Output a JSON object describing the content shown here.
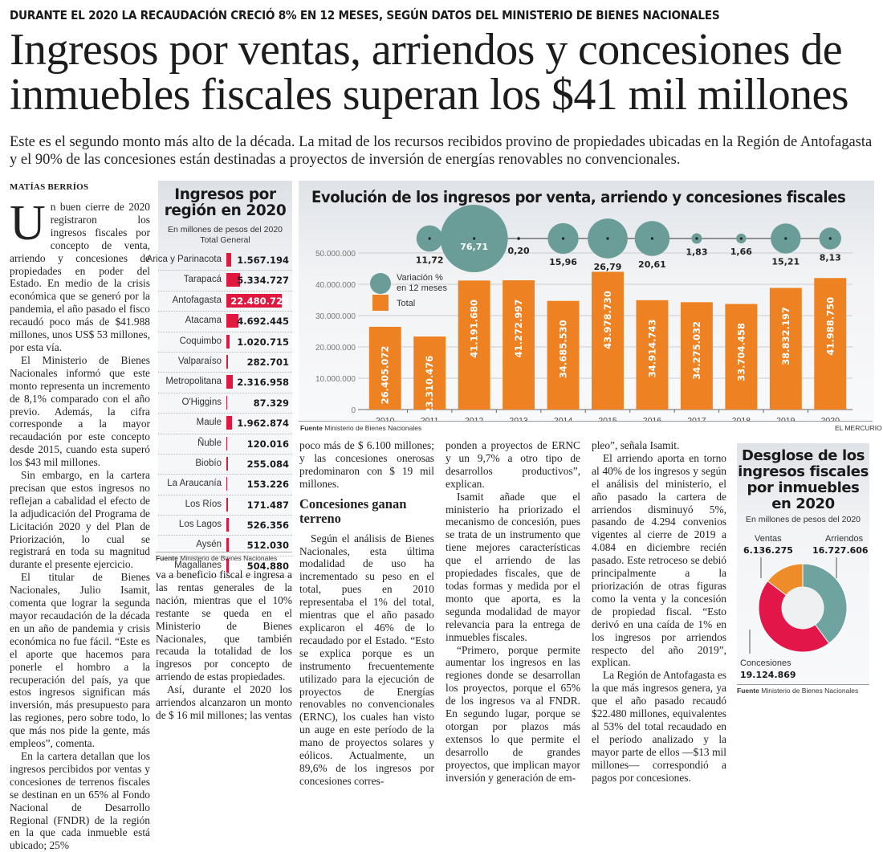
{
  "article": {
    "kicker": "DURANTE EL 2020 LA RECAUDACIÓN CRECIÓ 8% EN 12 MESES, SEGÚN DATOS DEL MINISTERIO DE BIENES NACIONALES",
    "headline": "Ingresos por ventas, arriendos y concesiones de inmuebles fiscales superan los $41 mil millones",
    "deck": "Este es el segundo monto más alto de la década. La mitad de los recursos recibidos provino de propiedades ubicadas en la Región de Antofagasta y el 90% de las concesiones están destinadas a proyectos de inversión de energías renovables no convencionales.",
    "byline": "MATÍAS BERRÍOS",
    "dropcap": "U",
    "col1": [
      "n buen cierre de 2020 registraron los ingresos fiscales por concepto de venta, arriendo y concesiones de propiedades en poder del Estado. En medio de la crisis económica que se generó por la pandemia, el año pasado el fisco recaudó poco más de $41.988 millones, unos US$ 53 millones, por esta vía.",
      "El Ministerio de Bienes Nacionales informó que este monto representa un incremento de 8,1% comparado con el año previo. Además, la cifra corresponde a la mayor recaudación por este concepto desde 2015, cuando esta superó los $43 mil millones.",
      "Sin embargo, en la cartera precisan que estos ingresos no reflejan a cabalidad el efecto de la adjudicación del Programa de Licitación 2020 y del Plan de Priorización, lo cual se registrará en toda su magnitud durante el presente ejercicio.",
      "El titular de Bienes Nacionales, Julio Isamit, comenta que lograr la segunda mayor recaudación de la década en un año de pandemia y crisis económica no fue fácil. “Este es el aporte que hacemos para ponerle el hombro a la recuperación del país, ya que estos ingresos significan más inversión, más presupuesto para las regiones, pero sobre todo, lo que más nos pide la gente, más empleos”, comenta.",
      "En la cartera detallan que los ingresos percibidos por ventas y concesiones de terrenos fiscales se destinan en un 65% al Fondo Nacional de Desarrollo Regional (FNDR) de la región en la que cada inmueble está ubicado; 25%"
    ],
    "col2": [
      "va a beneficio fiscal e ingresa a las rentas generales de la nación, mientras que el 10% restante se queda en el Ministerio de Bienes Nacionales, que también recauda la totalidad de los ingresos por concepto de arriendo de estas propiedades.",
      "Así, durante el 2020 los arriendos alcanzaron un monto de $ 16 mil millones; las ventas"
    ],
    "col3_intro": "poco más de $ 6.100 millones; y las concesiones onerosas predominaron con $ 19 mil millones.",
    "subhead": "Concesiones ganan terreno",
    "col3": [
      "Según el análisis de Bienes Nacionales, esta última modalidad de uso ha incrementado su peso en el total, pues en 2010 representaba el 1% del total, mientras que el año pasado explicaron el 46% de lo recaudado por el Estado. “Esto se explica porque es un instrumento frecuentemente utilizado para la ejecución de proyectos de Energías renovables no convencionales (ERNC), los cuales han visto un auge en este período de la mano de proyectos solares y eólicos. Actualmente, un 89,6% de los ingresos por concesiones corres-"
    ],
    "col4": [
      "ponden a proyectos de ERNC y un 9,7% a otro tipo de desarrollos productivos”, explican.",
      "Isamit añade que el ministerio ha priorizado el mecanismo de concesión, pues se trata de un instrumento que tiene mejores características que el arriendo de las propiedades fiscales, que de todas formas y medida por el monto que aporta, es la segunda modalidad de mayor relevancia para la entrega de inmuebles fiscales.",
      "“Primero, porque permite aumentar los ingresos en las regiones donde se desarrollan los proyectos, porque el 65% de los ingresos va al FNDR. En segundo lugar, porque se otorgan por plazos más extensos lo que permite el desarrollo de grandes proyectos, que implican mayor inversión y generación de em-"
    ],
    "col5": [
      "pleo”, señala Isamit.",
      "El arriendo aporta en torno al 40% de los ingresos y según el análisis del ministerio, el año pasado la cartera de arriendos disminuyó 5%, pasando de 4.294 convenios vigentes al cierre de 2019 a 4.084 en diciembre recién pasado. Este retroceso se debió principalmente a la priorización de otras figuras como la venta y la concesión de propiedad fiscal. “Esto derivó en una caída de 1% en los ingresos por arriendos respecto del año 2019”, explican.",
      "La Región de Antofagasta es la que más ingresos genera, ya que el año pasado recaudó $22.480 millones, equivalentes al 53% del total recaudado en el período analizado y la mayor parte de ellos —$13 mil millones— correspondió a pagos por concesiones."
    ]
  },
  "source_label": "Fuente",
  "source_text": "Ministerio de Bienes Nacionales",
  "credit": "EL MERCURIO",
  "colors": {
    "orange": "#ee8122",
    "teal": "#6a9c98",
    "red": "#e0173f",
    "arriendos": "#6fa39f",
    "ventas": "#ee8c2a",
    "concesiones": "#e3164a"
  },
  "chart_data": [
    {
      "type": "bar",
      "title": "Ingresos por región en 2020",
      "subtitle": "En millones de pesos del 2020",
      "subtitle2": "Total General",
      "categories": [
        "Arica y Parinacota",
        "Tarapacá",
        "Antofagasta",
        "Atacama",
        "Coquimbo",
        "Valparaíso",
        "Metropolitana",
        "O'Higgins",
        "Maule",
        "Ñuble",
        "Biobío",
        "La Araucanía",
        "Los Ríos",
        "Los Lagos",
        "Aysén",
        "Magallanes"
      ],
      "values": [
        1567194,
        5334727,
        22480729,
        4692445,
        1020715,
        282701,
        2316958,
        87329,
        1962874,
        120016,
        255084,
        153226,
        171487,
        526356,
        512030,
        504880
      ],
      "labels": [
        "1.567.194",
        "5.334.727",
        "22.480.729",
        "4.692.445",
        "1.020.715",
        "282.701",
        "2.316.958",
        "87.329",
        "1.962.874",
        "120.016",
        "255.084",
        "153.226",
        "171.487",
        "526.356",
        "512.030",
        "504.880"
      ],
      "orientation": "horizontal"
    },
    {
      "type": "bar",
      "title": "Evolución de los ingresos por venta, arriendo y concesiones fiscales",
      "categories": [
        "2010",
        "2011",
        "2012",
        "2013",
        "2014",
        "2015",
        "2016",
        "2017",
        "2018",
        "2019",
        "2020"
      ],
      "series": [
        {
          "name": "Total",
          "values": [
            26405072,
            23310476,
            41191680,
            41272997,
            34685530,
            43978730,
            34914743,
            34275032,
            33704458,
            38832197,
            41988750
          ],
          "labels": [
            "26.405.072",
            "23.310.476",
            "41.191.680",
            "41.272.997",
            "34.685.530",
            "43.978.730",
            "34.914.743",
            "34.275.032",
            "33.704.458",
            "38.832.197",
            "41.988.750"
          ]
        },
        {
          "name": "Variación % en 12 meses",
          "type": "bubble",
          "values": [
            11.72,
            76.71,
            0.2,
            15.96,
            26.79,
            20.61,
            1.83,
            1.66,
            15.21,
            8.13
          ],
          "labels": [
            "11,72",
            "76,71",
            "0,20",
            "15,96",
            "26,79",
            "20,61",
            "1,83",
            "1,66",
            "15,21",
            "8,13"
          ],
          "x": [
            "2011",
            "2012",
            "2013",
            "2014",
            "2015",
            "2016",
            "2017",
            "2018",
            "2019",
            "2020"
          ]
        }
      ],
      "yticks": [
        "0",
        "10.000.000",
        "20.000.000",
        "30.000.000",
        "40.000.000",
        "50.000.000"
      ],
      "ylim": [
        0,
        50000000
      ],
      "grid": true,
      "legend": [
        "Variación % en 12 meses",
        "Total"
      ],
      "legend_position": "top-left"
    },
    {
      "type": "pie",
      "title": "Desglose de los ingresos fiscales por inmuebles en 2020",
      "subtitle": "En millones de pesos del 2020",
      "categories": [
        "Arriendos",
        "Concesiones",
        "Ventas"
      ],
      "values": [
        16727606,
        19124869,
        6136275
      ],
      "labels": [
        "16.727.606",
        "19.124.869",
        "6.136.275"
      ],
      "donut": true
    }
  ]
}
